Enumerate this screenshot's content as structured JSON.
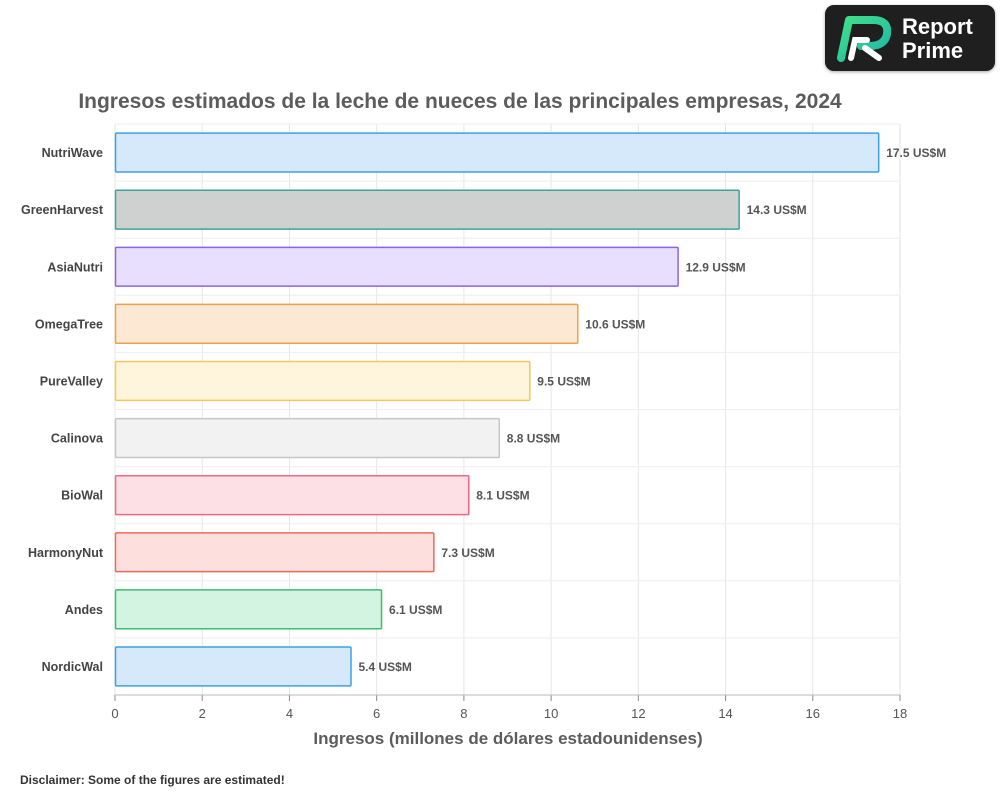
{
  "logo": {
    "line1": "Report",
    "line2": "Prime"
  },
  "disclaimer": "Disclaimer: Some of the figures are estimated!",
  "chart_data": {
    "type": "bar",
    "orientation": "horizontal",
    "title": "Ingresos estimados de la leche de nueces de las principales empresas, 2024",
    "xlabel": "Ingresos (millones de dólares estadounidenses)",
    "ylabel": "",
    "xlim": [
      0,
      18
    ],
    "xticks": [
      0,
      2,
      4,
      6,
      8,
      10,
      12,
      14,
      16,
      18
    ],
    "grid": true,
    "categories": [
      "NutriWave",
      "GreenHarvest",
      "AsiaNutri",
      "OmegaTree",
      "PureValley",
      "Calinova",
      "BioWal",
      "HarmonyNut",
      "Andes",
      "NordicWal"
    ],
    "values": [
      17.5,
      14.3,
      12.9,
      10.6,
      9.5,
      8.8,
      8.1,
      7.3,
      6.1,
      5.4
    ],
    "labels": [
      "17.5 US$M",
      "14.3 US$M",
      "12.9 US$M",
      "10.6 US$M",
      "9.5 US$M",
      "8.8 US$M",
      "8.1 US$M",
      "7.3 US$M",
      "6.1 US$M",
      "5.4 US$M"
    ],
    "fill_colors": [
      "#d6e9fa",
      "#cfd1d0",
      "#e8defe",
      "#fde8d4",
      "#fff4dc",
      "#f2f2f2",
      "#fde0e6",
      "#fde0dd",
      "#d4f4e2",
      "#d6e9fa"
    ],
    "stroke_colors": [
      "#3fa0e0",
      "#3ca3a0",
      "#8a66e0",
      "#f0a04a",
      "#f3c85a",
      "#c6c6c6",
      "#ec6a86",
      "#ee6a5c",
      "#38c070",
      "#3fa0e0"
    ]
  }
}
